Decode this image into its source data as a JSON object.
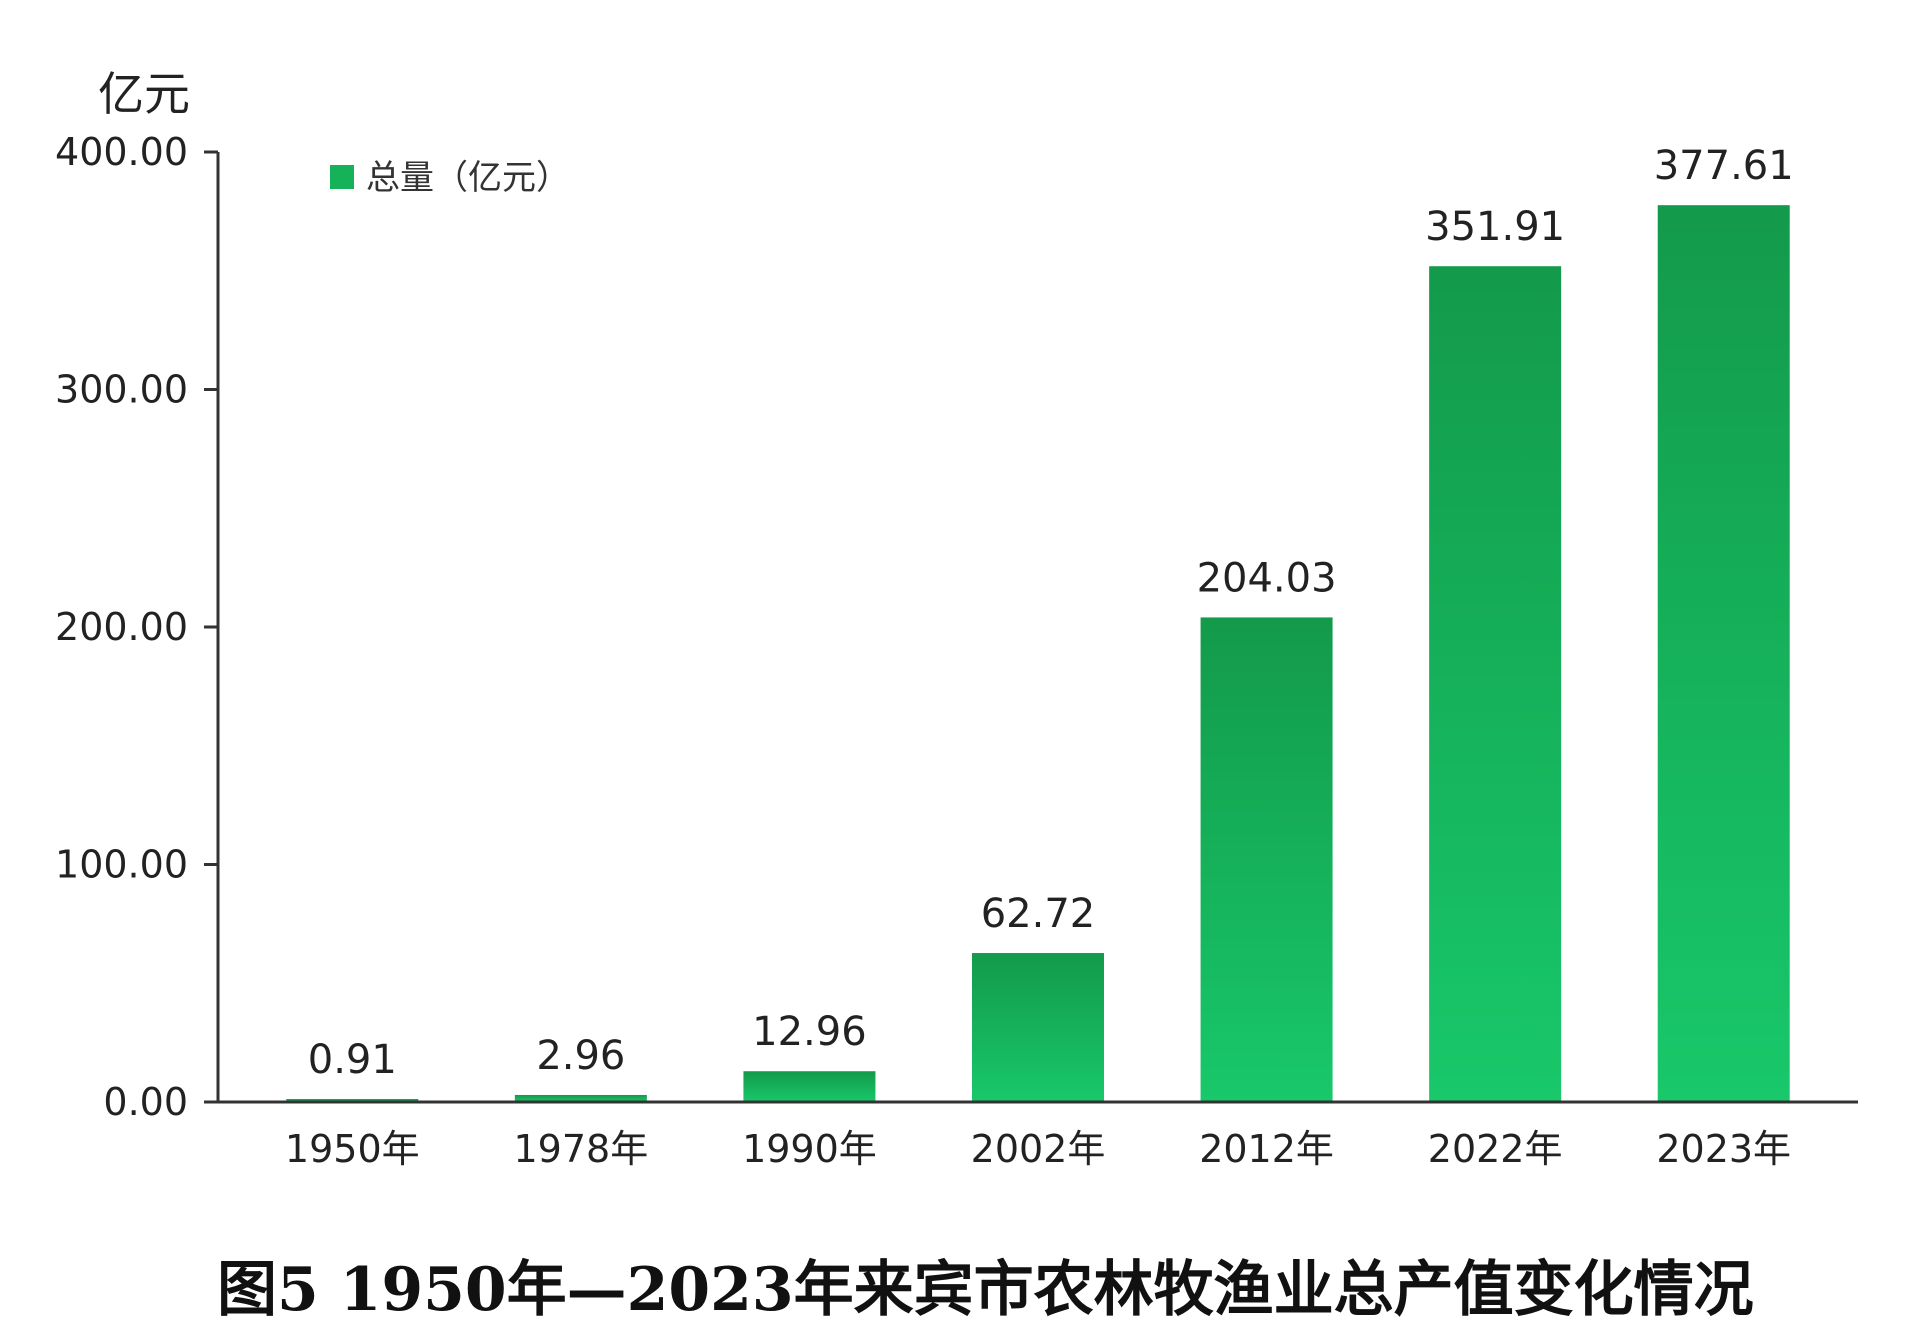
{
  "chart_data": {
    "type": "bar",
    "title": "图5  1950年—2023年来宾市农林牧渔业总产值变化情况",
    "ylabel": "亿元",
    "xlabel": "",
    "categories": [
      "1950年",
      "1978年",
      "1990年",
      "2002年",
      "2012年",
      "2022年",
      "2023年"
    ],
    "series": [
      {
        "name": "总量（亿元）",
        "values": [
          0.91,
          2.96,
          12.96,
          62.72,
          204.03,
          351.91,
          377.61
        ],
        "value_labels": [
          "0.91",
          "2.96",
          "12.96",
          "62.72",
          "204.03",
          "351.91",
          "377.61"
        ]
      }
    ],
    "ylim": [
      0,
      400
    ],
    "yticks": [
      0,
      100,
      200,
      300,
      400
    ],
    "ytick_labels": [
      "0.00",
      "100.00",
      "200.00",
      "300.00",
      "400.00"
    ],
    "legend_position": "top-left",
    "grid": false,
    "colors": {
      "bar_top": "#139a4a",
      "bar_bottom": "#18c86a",
      "legend_swatch": "#16b25a",
      "axis": "#333333"
    }
  }
}
